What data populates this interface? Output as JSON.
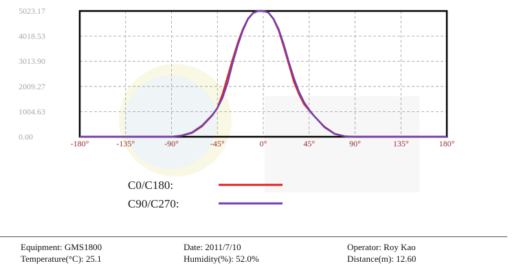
{
  "chart_data": {
    "type": "line",
    "title": "",
    "xlabel": "",
    "ylabel": "",
    "xlim": [
      -180,
      180
    ],
    "ylim": [
      0,
      5023.17
    ],
    "x_ticks": [
      -180,
      -135,
      -90,
      -45,
      0,
      45,
      90,
      135,
      180
    ],
    "x_tick_labels": [
      "-180°",
      "-135°",
      "-90°",
      "-45°",
      "0°",
      "45°",
      "90°",
      "135°",
      "180°"
    ],
    "y_ticks": [
      0,
      1004.63,
      2009.27,
      3013.9,
      4018.53,
      5023.17
    ],
    "y_tick_labels": [
      "0.00",
      "1004.63",
      "2009.27",
      "3013.90",
      "4018.53",
      "5023.17"
    ],
    "grid": true,
    "legend_position": "bottom",
    "series": [
      {
        "name": "C0/C180:",
        "color": "#dd2222",
        "x": [
          -180,
          -90,
          -80,
          -70,
          -60,
          -50,
          -45,
          -40,
          -35,
          -30,
          -25,
          -20,
          -15,
          -10,
          -5,
          0,
          5,
          10,
          15,
          20,
          25,
          30,
          35,
          40,
          45,
          50,
          60,
          70,
          80,
          90,
          180
        ],
        "y": [
          0,
          0,
          40,
          150,
          420,
          850,
          1150,
          1700,
          2400,
          3100,
          3750,
          4300,
          4720,
          4950,
          5023,
          5023,
          4960,
          4700,
          4250,
          3600,
          2900,
          2200,
          1700,
          1300,
          1050,
          820,
          400,
          120,
          20,
          0,
          0
        ]
      },
      {
        "name": "C90/C270:",
        "color": "#7040b0",
        "x": [
          -180,
          -90,
          -80,
          -70,
          -60,
          -50,
          -45,
          -40,
          -35,
          -30,
          -25,
          -20,
          -15,
          -10,
          -5,
          0,
          5,
          10,
          15,
          20,
          25,
          30,
          35,
          40,
          45,
          50,
          60,
          70,
          80,
          90,
          180
        ],
        "y": [
          0,
          0,
          50,
          170,
          450,
          870,
          1150,
          1550,
          2150,
          2950,
          3650,
          4250,
          4700,
          4940,
          5023,
          5023,
          4960,
          4720,
          4300,
          3700,
          3000,
          2350,
          1800,
          1380,
          1080,
          820,
          380,
          110,
          15,
          0,
          0
        ]
      }
    ]
  },
  "legend": [
    {
      "label": "C0/C180:",
      "color": "#dd2222"
    },
    {
      "label": "C90/C270:",
      "color": "#7040b0"
    }
  ],
  "footer": {
    "equipment": "Equipment: GMS1800",
    "temperature": "Temperature(°C): 25.1",
    "date": "Date: 2011/7/10",
    "humidity": "Humidity(%): 52.0%",
    "operator": "Operator: Roy Kao",
    "distance": "Distance(m): 12.60"
  }
}
